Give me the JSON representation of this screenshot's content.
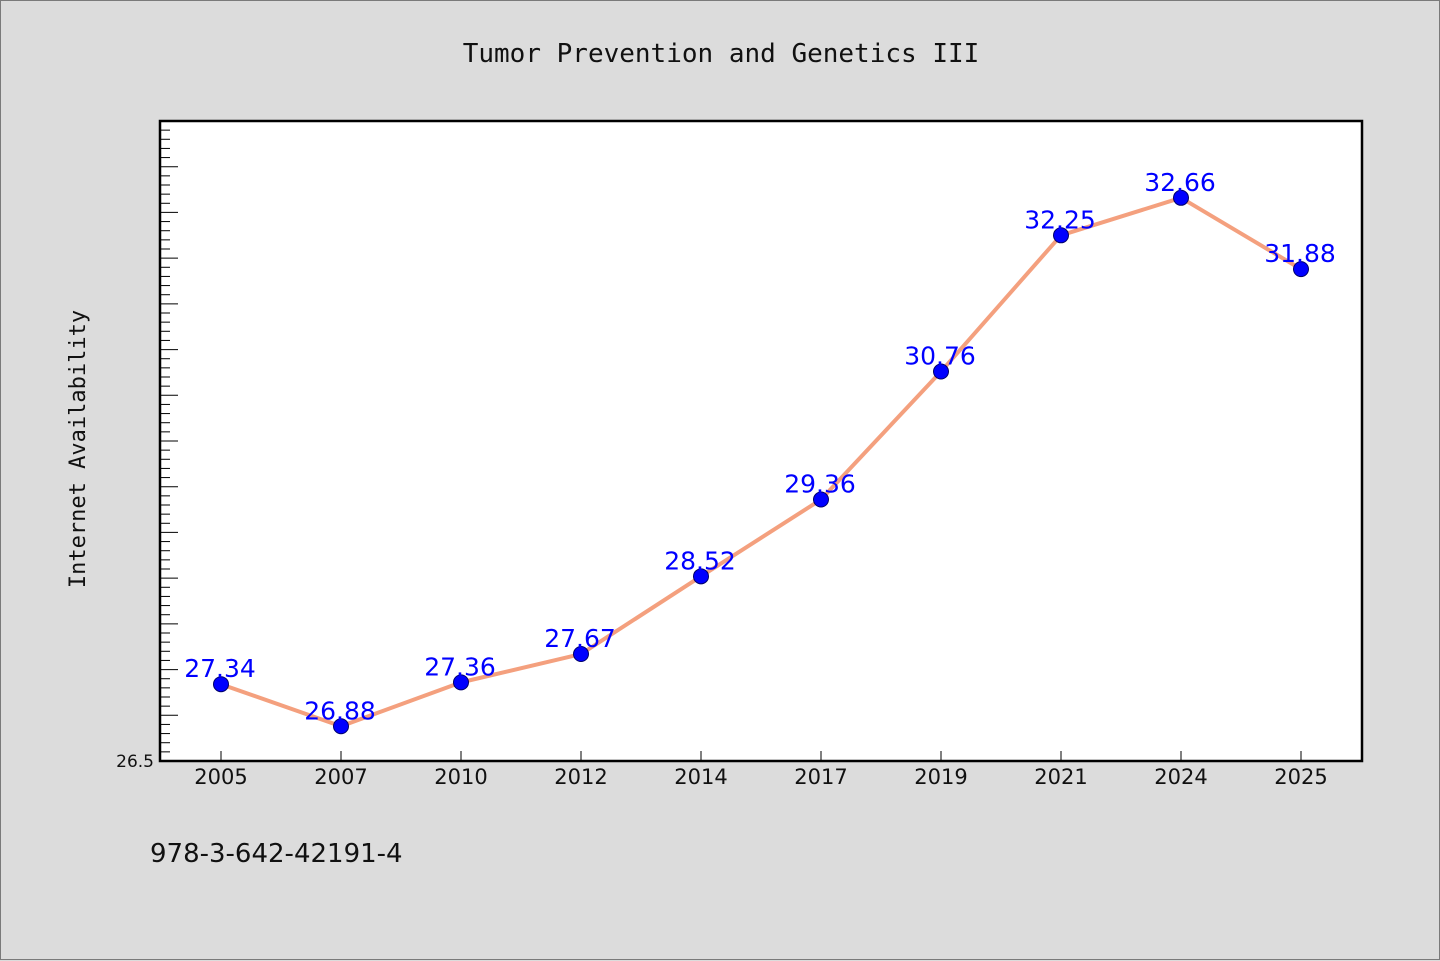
{
  "chart_data": {
    "type": "line",
    "title": "Tumor Prevention and Genetics III",
    "xlabel": "",
    "ylabel": "Internet Availability",
    "categories": [
      "2005",
      "2007",
      "2010",
      "2012",
      "2014",
      "2017",
      "2019",
      "2021",
      "2024",
      "2025"
    ],
    "series": [
      {
        "values": [
          27.34,
          26.88,
          27.36,
          27.67,
          28.52,
          29.36,
          30.76,
          32.25,
          32.66,
          31.88
        ],
        "data_labels": [
          "27.34",
          "26.88",
          "27.36",
          "27.67",
          "28.52",
          "29.36",
          "30.76",
          "32.25",
          "32.66",
          "31.88"
        ]
      }
    ],
    "ylim": [
      26.5,
      33.5
    ],
    "y_tick_labels": [
      "26.5"
    ],
    "grid": false,
    "colors": {
      "line": "#f4a07e",
      "marker": "#0000ff",
      "data_label": "#0000ff",
      "background": "#dcdcdc",
      "plot_area": "#ffffff"
    }
  },
  "footer": {
    "text": "978-3-642-42191-4"
  }
}
